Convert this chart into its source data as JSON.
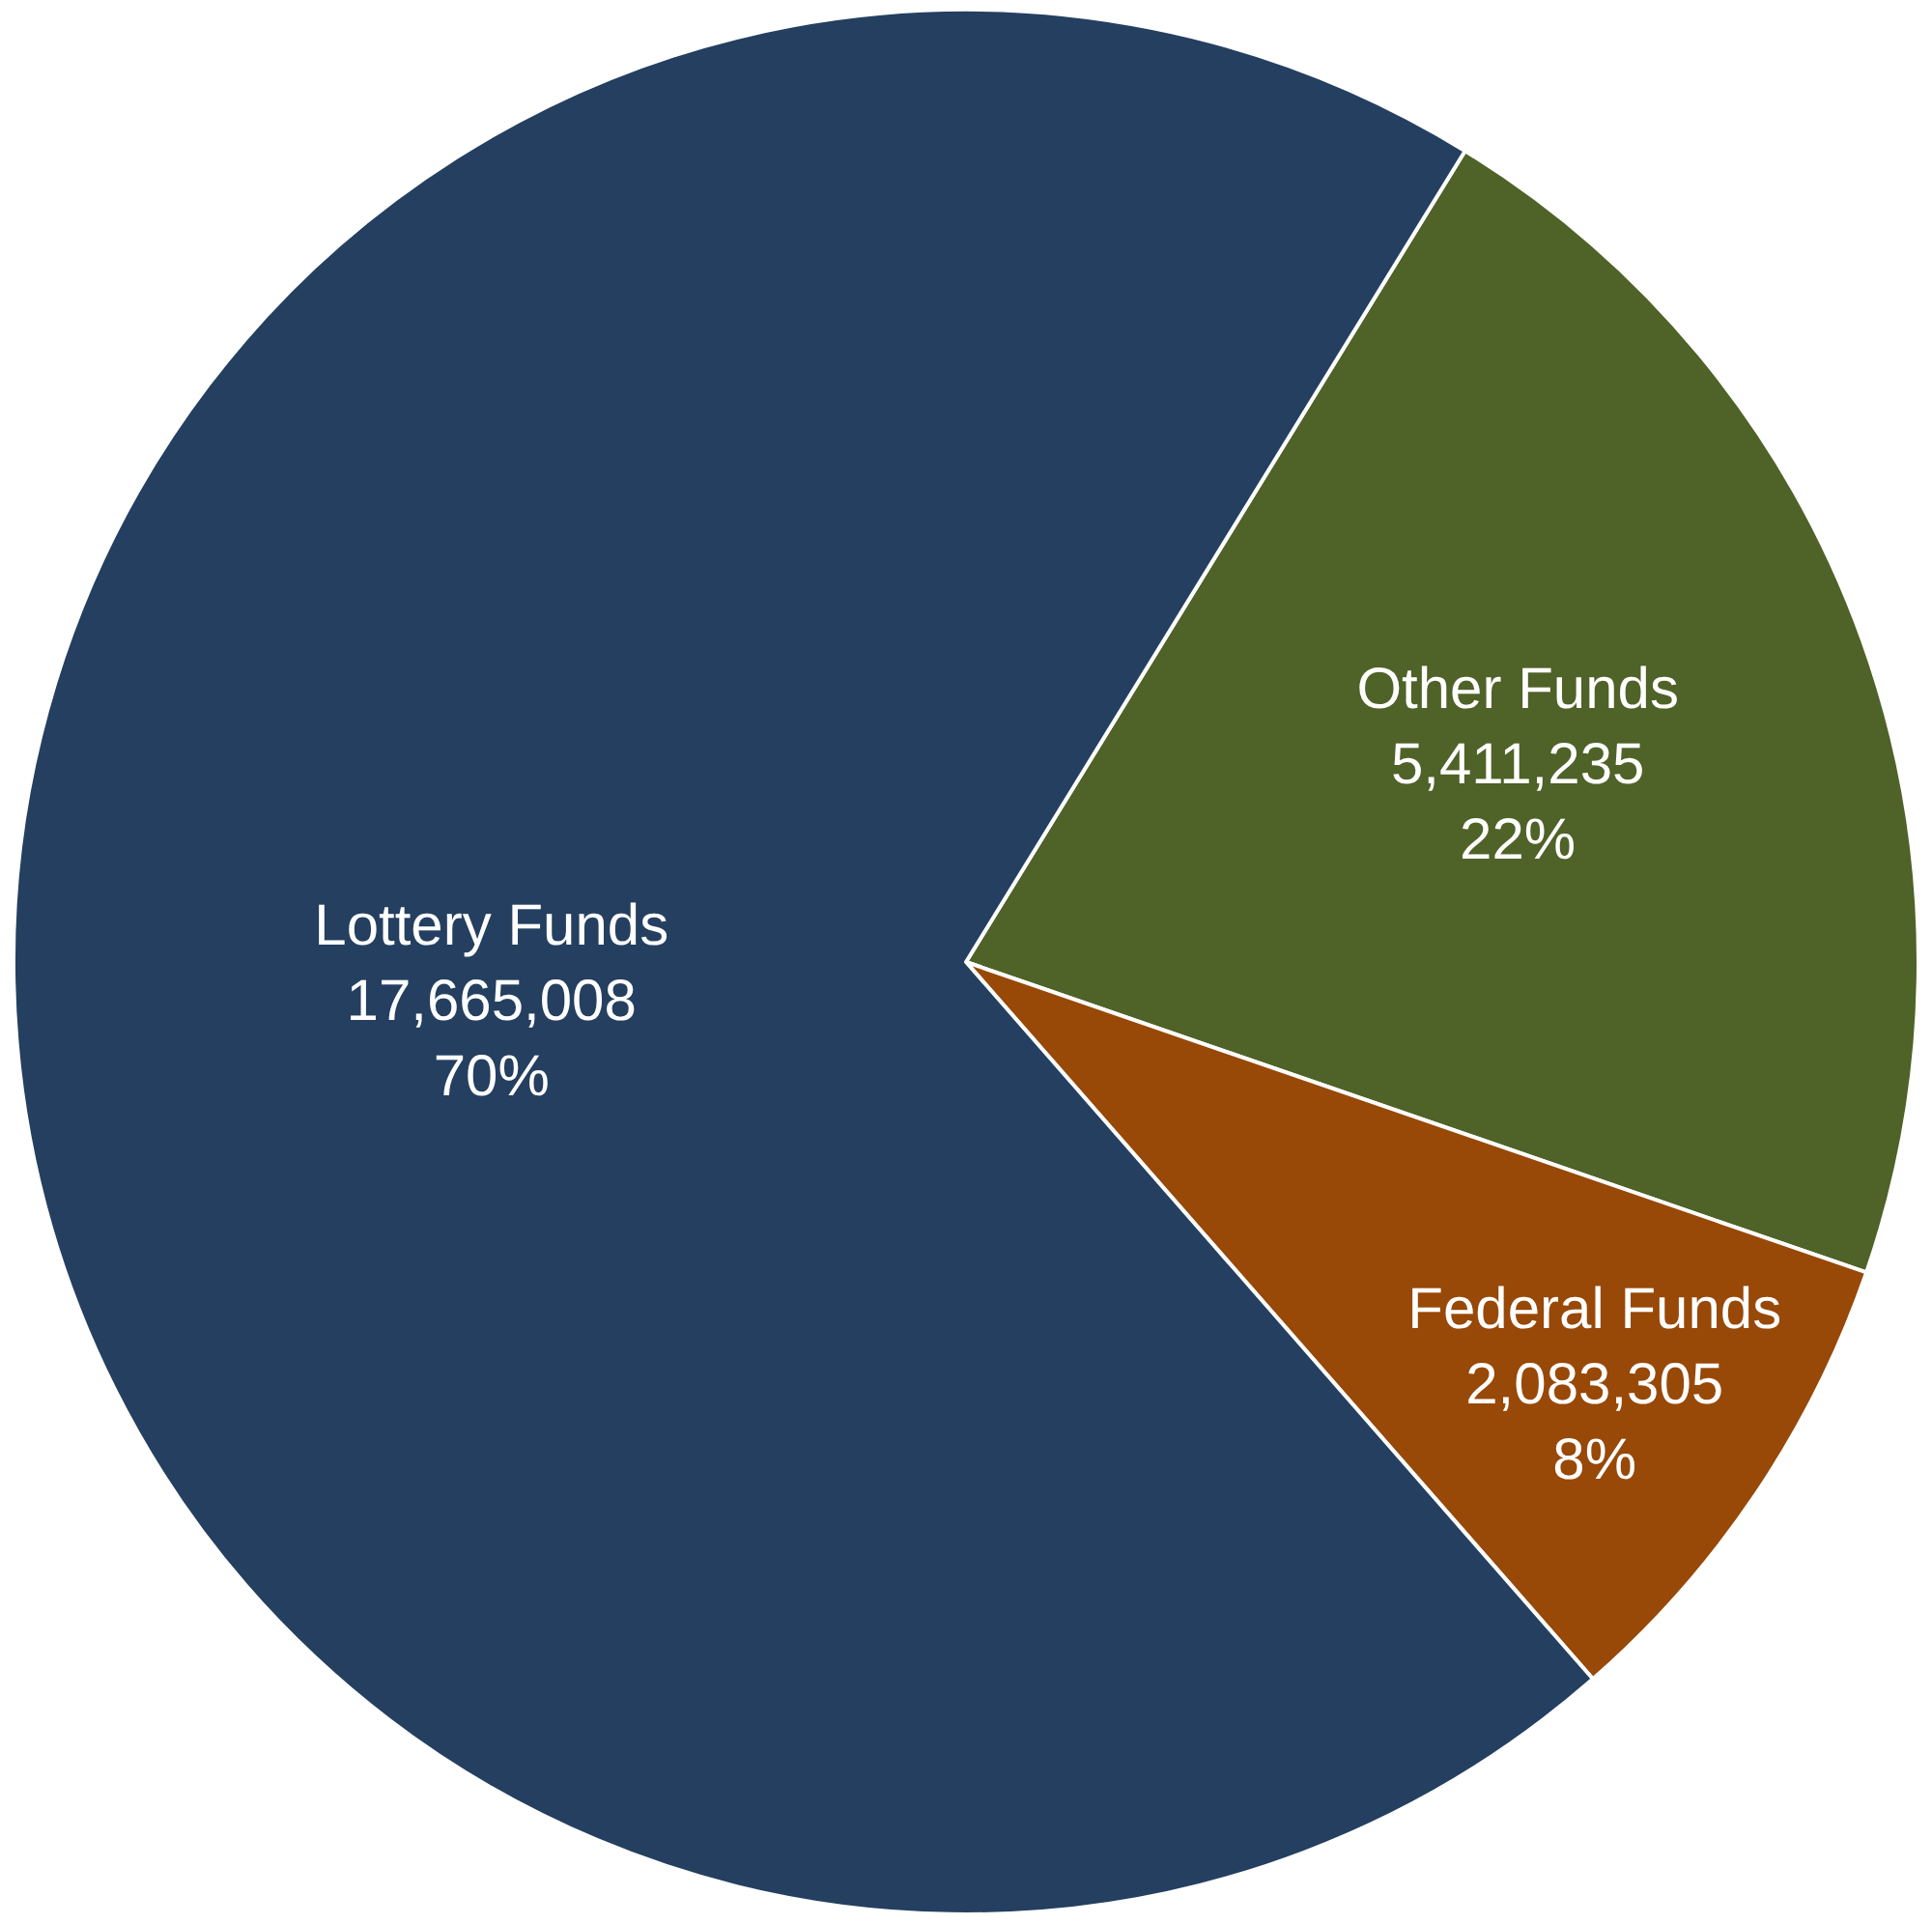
{
  "chart_data": {
    "type": "pie",
    "categories": [
      "Other Funds",
      "Federal Funds",
      "Lottery Funds"
    ],
    "values": [
      5411235,
      2083305,
      17665008
    ],
    "value_labels": [
      "5,411,235\n22%",
      "2,083,305\n8%",
      "17,665,008\n70%"
    ],
    "colors": [
      "#4f6228",
      "#984807",
      "#243f60"
    ],
    "legend": false
  }
}
